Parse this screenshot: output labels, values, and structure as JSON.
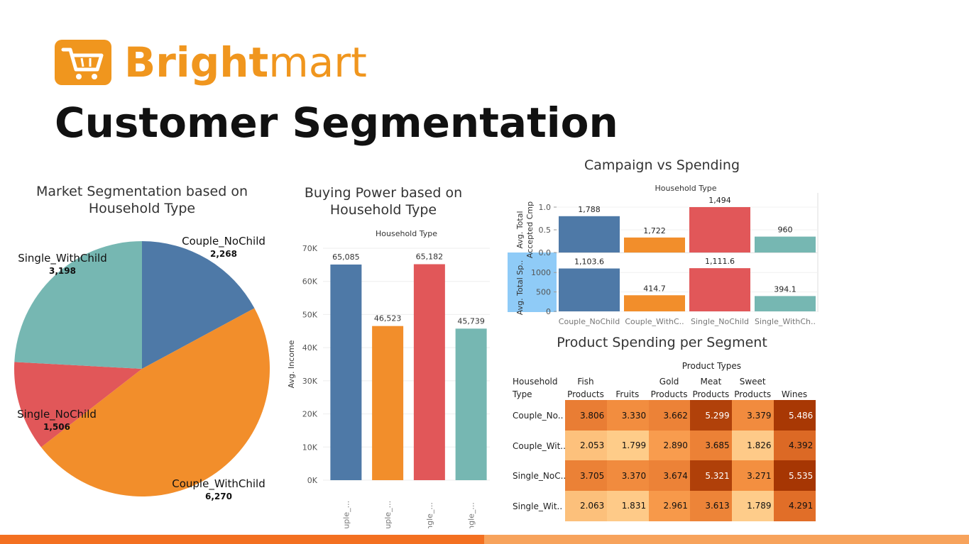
{
  "brand": {
    "name_bold": "Bright",
    "name_light": "mart",
    "color": "#f0961e"
  },
  "page": {
    "title": "Customer Segmentation"
  },
  "colors": {
    "couple_nochild": "#4e79a7",
    "couple_withchild": "#f28e2b",
    "single_nochild": "#e15759",
    "single_withchild": "#76b7b2"
  },
  "chart_data": [
    {
      "type": "pie",
      "title": "Market Segmentation based on Household Type",
      "slices": [
        {
          "label": "Couple_NoChild",
          "value": 2268,
          "value_label": "2,268"
        },
        {
          "label": "Couple_WithChild",
          "value": 6270,
          "value_label": "6,270"
        },
        {
          "label": "Single_NoChild",
          "value": 1506,
          "value_label": "1,506"
        },
        {
          "label": "Single_WithChild",
          "value": 3198,
          "value_label": "3,198"
        }
      ]
    },
    {
      "type": "bar",
      "title": "Buying Power based on Household Type",
      "header": "Household Type",
      "ylabel": "Avg. Income",
      "ylim": [
        0,
        70000
      ],
      "yticks": [
        "0K",
        "10K",
        "20K",
        "30K",
        "40K",
        "50K",
        "60K",
        "70K"
      ],
      "categories": [
        "Couple_...",
        "Couple_...",
        "Single_...",
        "Single_..."
      ],
      "values": [
        65085,
        46523,
        65182,
        45739
      ],
      "value_labels": [
        "65,085",
        "46,523",
        "65,182",
        "45,739"
      ]
    },
    {
      "type": "bar",
      "title": "Campaign vs Spending",
      "header": "Household Type",
      "categories": [
        "Couple_NoChild",
        "Couple_WithC..",
        "Single_NoChild",
        "Single_WithCh.."
      ],
      "panels": [
        {
          "ylabel": "Avg. Total Accepted Cmp",
          "ylim": [
            0,
            1.0
          ],
          "yticks": [
            "0.0",
            "0.5",
            "1.0"
          ],
          "values": [
            0.8,
            0.33,
            1.0,
            0.35
          ],
          "value_labels": [
            "1,788",
            "1,722",
            "1,494",
            "960"
          ]
        },
        {
          "ylabel": "Avg. Total Sp..",
          "ylim": [
            0,
            1150
          ],
          "yticks": [
            "0",
            "500",
            "1000"
          ],
          "values": [
            1103.6,
            414.7,
            1111.6,
            394.1
          ],
          "value_labels": [
            "1,103.6",
            "414.7",
            "1,111.6",
            "394.1"
          ]
        }
      ]
    },
    {
      "type": "heatmap",
      "title": "Product Spending per Segment",
      "header": "Product Types",
      "row_header": [
        "Household",
        "Type"
      ],
      "columns": [
        [
          "Fish",
          "Products"
        ],
        [
          "",
          "Fruits"
        ],
        [
          "Gold",
          "Products"
        ],
        [
          "Meat",
          "Products"
        ],
        [
          "Sweet",
          "Products"
        ],
        [
          "",
          "Wines"
        ]
      ],
      "rows": [
        "Couple_No..",
        "Couple_Wit..",
        "Single_NoC..",
        "Single_Wit.."
      ],
      "values": [
        [
          3.806,
          3.33,
          3.662,
          5.299,
          3.379,
          5.486
        ],
        [
          2.053,
          1.799,
          2.89,
          3.685,
          1.826,
          4.392
        ],
        [
          3.705,
          3.37,
          3.674,
          5.321,
          3.271,
          5.535
        ],
        [
          2.063,
          1.831,
          2.961,
          3.613,
          1.789,
          4.291
        ]
      ],
      "value_labels": [
        [
          "3.806",
          "3.330",
          "3.662",
          "5.299",
          "3.379",
          "5.486"
        ],
        [
          "2.053",
          "1.799",
          "2.890",
          "3.685",
          "1.826",
          "4.392"
        ],
        [
          "3.705",
          "3.370",
          "3.674",
          "5.321",
          "3.271",
          "5.535"
        ],
        [
          "2.063",
          "1.831",
          "2.961",
          "3.613",
          "1.789",
          "4.291"
        ]
      ]
    }
  ]
}
